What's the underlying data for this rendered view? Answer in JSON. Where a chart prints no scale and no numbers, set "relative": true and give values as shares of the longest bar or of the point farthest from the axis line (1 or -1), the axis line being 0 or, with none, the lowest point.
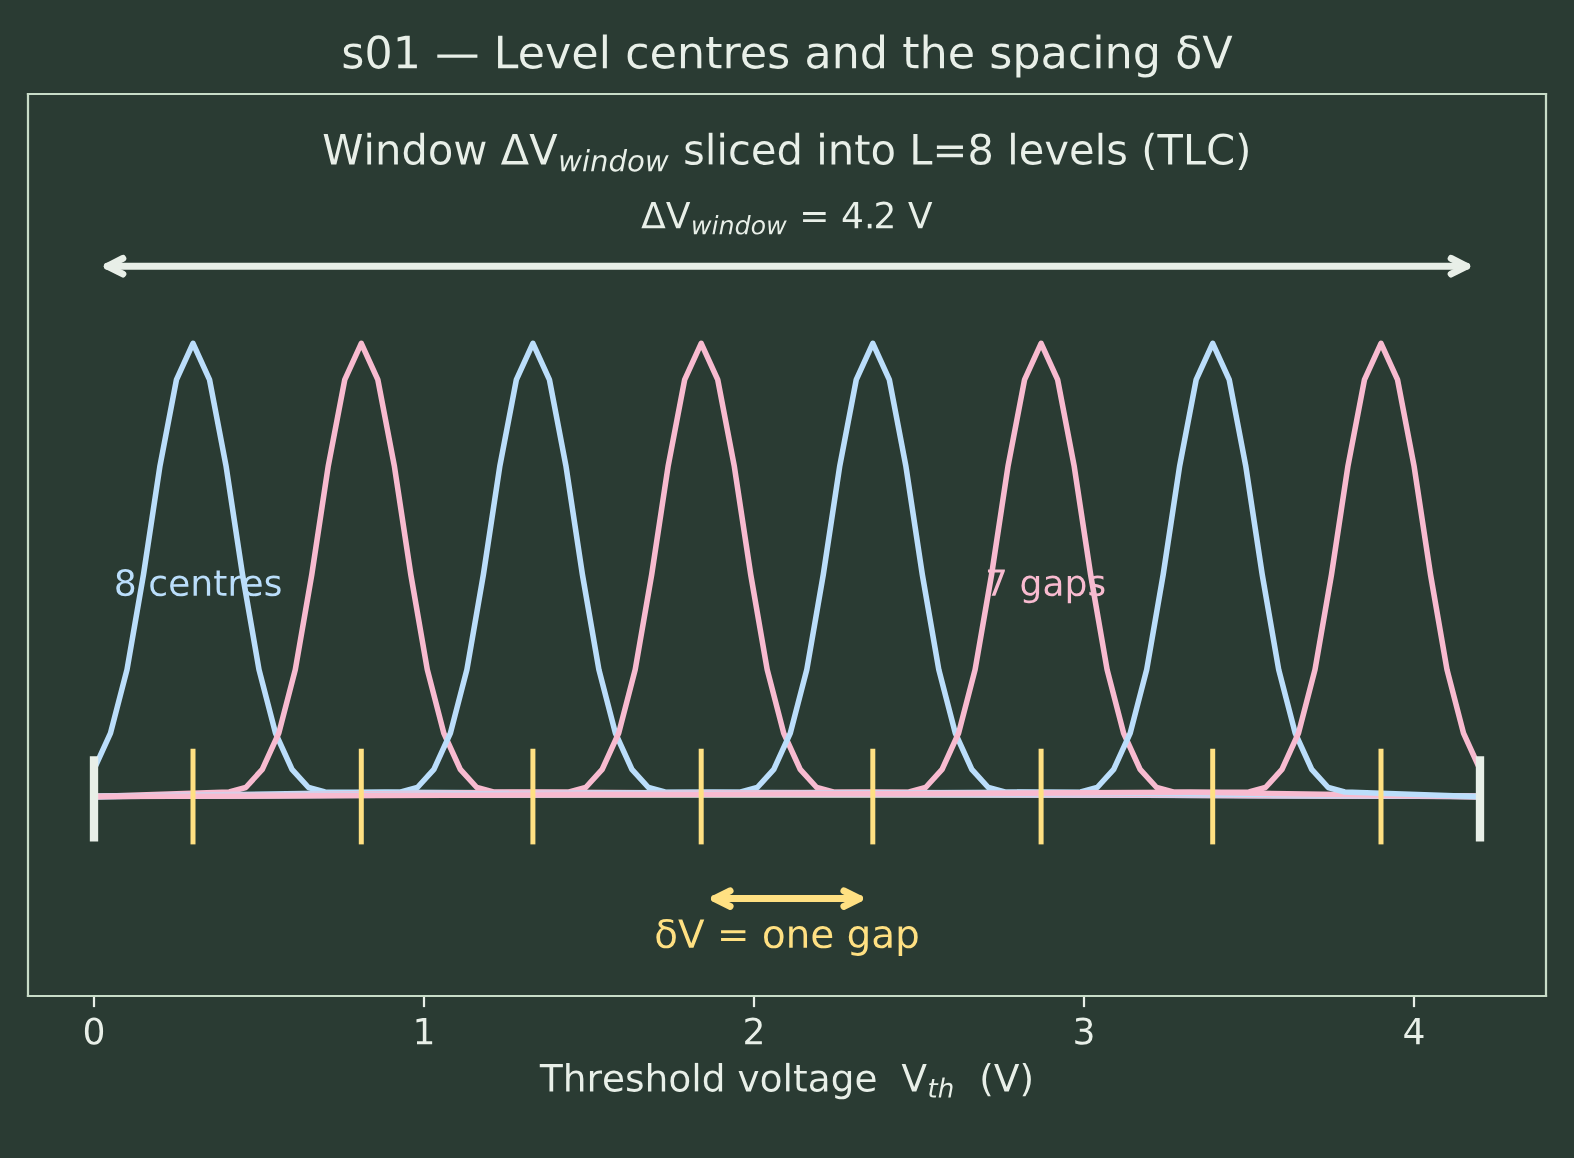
{
  "chart_data": {
    "type": "line",
    "relative": true,
    "title": "s01 — Level centres and the spacing δV",
    "subtitle": "Window ΔV$_{window}$ sliced into L=8 levels (TLC)",
    "xlabel": "Threshold voltage  V$_{th}$  (V)",
    "xlim": [
      -0.2,
      4.4
    ],
    "xticks": [
      0,
      1,
      2,
      3,
      4
    ],
    "annotations": [
      "ΔV$_{window}$ = 4.2 V",
      "δV = one gap",
      "8 centres",
      "7 gaps"
    ],
    "series": [
      {
        "color": "#bbdefb",
        "x": [
          0,
          0.05,
          0.1,
          0.15,
          0.2,
          0.25,
          0.3,
          0.35,
          0.4,
          0.45,
          0.5,
          0.55,
          0.6,
          0.65,
          0.7,
          4.2
        ],
        "values": [
          0.06,
          0.14,
          0.28,
          0.49,
          0.73,
          0.92,
          1,
          0.92,
          0.73,
          0.49,
          0.28,
          0.14,
          0.06,
          0.02,
          0.01,
          0
        ]
      },
      {
        "color": "#f8bbd0",
        "x": [
          0,
          0.41,
          0.46,
          0.51,
          0.56,
          0.61,
          0.66,
          0.71,
          0.76,
          0.81,
          0.86,
          0.91,
          0.96,
          1.01,
          1.06,
          1.11,
          1.16,
          1.21,
          4.2
        ],
        "values": [
          0,
          0.01,
          0.02,
          0.06,
          0.14,
          0.28,
          0.49,
          0.73,
          0.92,
          1,
          0.92,
          0.73,
          0.49,
          0.28,
          0.14,
          0.06,
          0.02,
          0.01,
          0
        ]
      },
      {
        "color": "#bbdefb",
        "x": [
          0,
          0.93,
          0.98,
          1.03,
          1.08,
          1.13,
          1.18,
          1.23,
          1.28,
          1.33,
          1.38,
          1.43,
          1.48,
          1.53,
          1.58,
          1.63,
          1.68,
          1.73,
          4.2
        ],
        "values": [
          0,
          0.01,
          0.02,
          0.06,
          0.14,
          0.28,
          0.49,
          0.73,
          0.92,
          1,
          0.92,
          0.73,
          0.49,
          0.28,
          0.14,
          0.06,
          0.02,
          0.01,
          0
        ]
      },
      {
        "color": "#f8bbd0",
        "x": [
          0,
          1.44,
          1.49,
          1.54,
          1.59,
          1.64,
          1.69,
          1.74,
          1.79,
          1.84,
          1.89,
          1.94,
          1.99,
          2.04,
          2.09,
          2.14,
          2.19,
          2.24,
          4.2
        ],
        "values": [
          0,
          0.01,
          0.02,
          0.06,
          0.14,
          0.28,
          0.49,
          0.73,
          0.92,
          1,
          0.92,
          0.73,
          0.49,
          0.28,
          0.14,
          0.06,
          0.02,
          0.01,
          0
        ]
      },
      {
        "color": "#bbdefb",
        "x": [
          0,
          1.96,
          2.01,
          2.06,
          2.11,
          2.16,
          2.21,
          2.26,
          2.31,
          2.36,
          2.41,
          2.46,
          2.51,
          2.56,
          2.61,
          2.66,
          2.71,
          2.76,
          4.2
        ],
        "values": [
          0,
          0.01,
          0.02,
          0.06,
          0.14,
          0.28,
          0.49,
          0.73,
          0.92,
          1,
          0.92,
          0.73,
          0.49,
          0.28,
          0.14,
          0.06,
          0.02,
          0.01,
          0
        ]
      },
      {
        "color": "#f8bbd0",
        "x": [
          0,
          2.47,
          2.52,
          2.57,
          2.62,
          2.67,
          2.72,
          2.77,
          2.82,
          2.87,
          2.92,
          2.97,
          3.02,
          3.07,
          3.12,
          3.17,
          3.22,
          3.27,
          4.2
        ],
        "values": [
          0,
          0.01,
          0.02,
          0.06,
          0.14,
          0.28,
          0.49,
          0.73,
          0.92,
          1,
          0.92,
          0.73,
          0.49,
          0.28,
          0.14,
          0.06,
          0.02,
          0.01,
          0
        ]
      },
      {
        "color": "#bbdefb",
        "x": [
          0,
          2.99,
          3.04,
          3.09,
          3.14,
          3.19,
          3.24,
          3.29,
          3.34,
          3.39,
          3.44,
          3.49,
          3.54,
          3.59,
          3.64,
          3.69,
          3.74,
          3.79,
          4.2
        ],
        "values": [
          0,
          0.01,
          0.02,
          0.06,
          0.14,
          0.28,
          0.49,
          0.73,
          0.92,
          1,
          0.92,
          0.73,
          0.49,
          0.28,
          0.14,
          0.06,
          0.02,
          0.01,
          0
        ]
      },
      {
        "color": "#f8bbd0",
        "x": [
          0,
          3.5,
          3.55,
          3.6,
          3.65,
          3.7,
          3.75,
          3.8,
          3.85,
          3.9,
          3.95,
          4.0,
          4.05,
          4.1,
          4.15,
          4.2
        ],
        "values": [
          0,
          0.01,
          0.02,
          0.06,
          0.14,
          0.28,
          0.49,
          0.73,
          0.92,
          1,
          0.92,
          0.73,
          0.49,
          0.28,
          0.14,
          0.06
        ]
      }
    ]
  }
}
